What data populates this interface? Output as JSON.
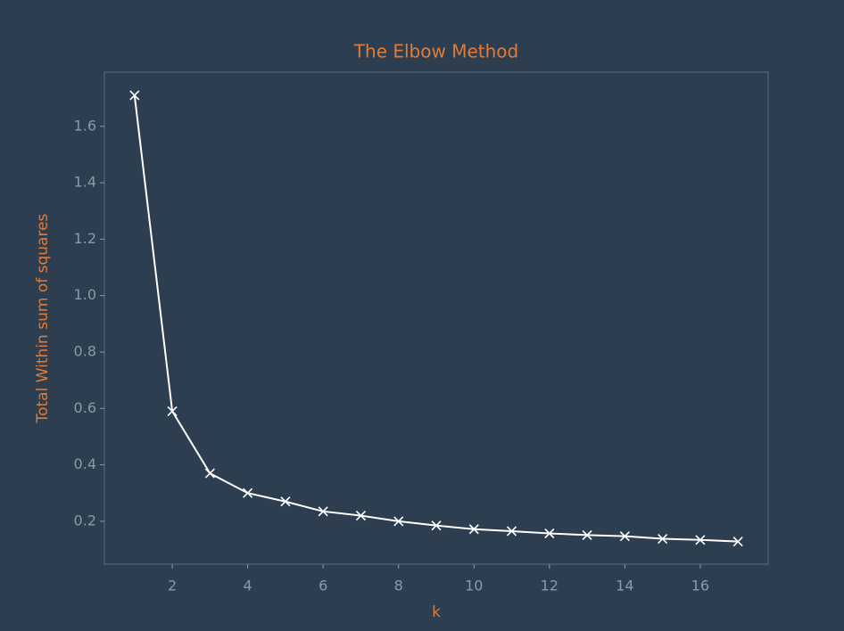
{
  "chart_data": {
    "type": "line",
    "title": "The Elbow Method",
    "x_label": "k",
    "y_label": "Total Within sum of squares",
    "x": [
      1,
      2,
      3,
      4,
      5,
      6,
      7,
      8,
      9,
      10,
      11,
      12,
      13,
      14,
      15,
      16,
      17
    ],
    "series": [
      {
        "name": "Total Within sum of squares",
        "color": "#ffffff",
        "marker": "x",
        "values": [
          1.71,
          0.59,
          0.37,
          0.3,
          0.27,
          0.235,
          0.22,
          0.2,
          0.185,
          0.172,
          0.165,
          0.157,
          0.151,
          0.147,
          0.138,
          0.134,
          0.128
        ]
      }
    ],
    "xlim": [
      0.2,
      17.8
    ],
    "xticks": [
      2,
      4,
      6,
      8,
      10,
      12,
      14,
      16
    ],
    "ylim": [
      0.048,
      1.792
    ],
    "yticks": [
      0.2,
      0.4,
      0.6,
      0.8,
      {
        "value": 1.0,
        "label": "1.0"
      },
      1.2,
      1.4,
      1.6
    ],
    "grid": false
  }
}
